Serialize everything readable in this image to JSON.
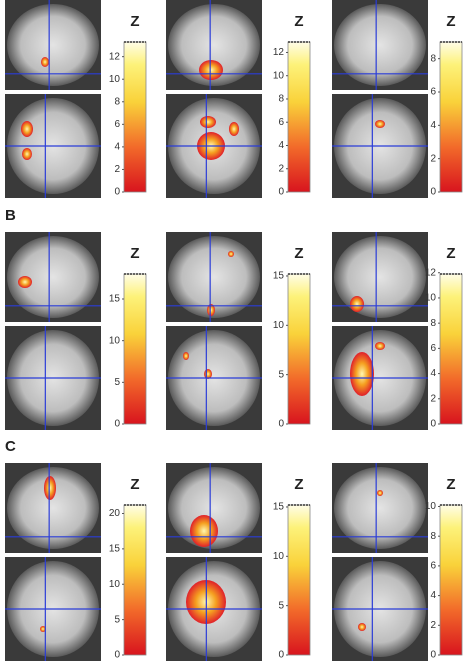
{
  "figure": {
    "rows": [
      {
        "panels": [
          {
            "colorbar": {
              "title": "Z",
              "zlim": [
                0,
                13.3
              ],
              "ticks": [
                0,
                2,
                4,
                6,
                8,
                10,
                12
              ]
            }
          },
          {
            "colorbar": {
              "title": "Z",
              "zlim": [
                0,
                12.9
              ],
              "ticks": [
                0,
                2,
                4,
                6,
                8,
                10,
                12
              ]
            }
          },
          {
            "colorbar": {
              "title": "Z",
              "zlim": [
                0,
                9
              ],
              "ticks": [
                0,
                2,
                4,
                6,
                8
              ]
            }
          }
        ]
      },
      {
        "label": "B",
        "panels": [
          {
            "colorbar": {
              "title": "Z",
              "zlim": [
                0,
                18
              ],
              "ticks": [
                0,
                5,
                10,
                15
              ]
            }
          },
          {
            "colorbar": {
              "title": "Z",
              "zlim": [
                0,
                15.2
              ],
              "ticks": [
                0,
                5,
                10,
                15
              ]
            }
          },
          {
            "colorbar": {
              "title": "Z",
              "zlim": [
                0,
                11.9
              ],
              "ticks": [
                0,
                2,
                4,
                6,
                8,
                10,
                12
              ]
            }
          }
        ]
      },
      {
        "label": "C",
        "panels": [
          {
            "colorbar": {
              "title": "Z",
              "zlim": [
                0,
                21.2
              ],
              "ticks": [
                0,
                5,
                10,
                15,
                20
              ]
            }
          },
          {
            "colorbar": {
              "title": "Z",
              "zlim": [
                0,
                15.2
              ],
              "ticks": [
                0,
                5,
                10,
                15
              ]
            }
          },
          {
            "colorbar": {
              "title": "Z",
              "zlim": [
                0,
                10.1
              ],
              "ticks": [
                0,
                2,
                4,
                6,
                8,
                10
              ]
            }
          }
        ]
      }
    ]
  }
}
